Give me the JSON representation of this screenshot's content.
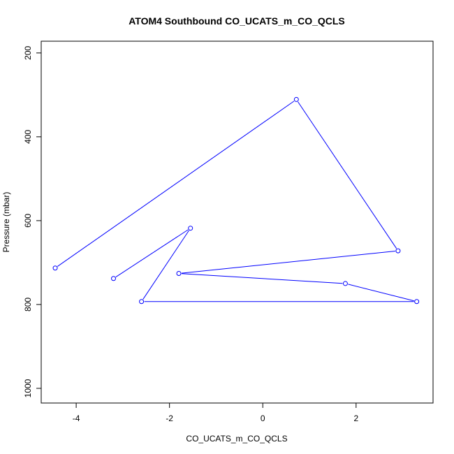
{
  "chart_data": {
    "type": "line",
    "title": "ATOM4 Southbound CO_UCATS_m_CO_QCLS",
    "xlabel": "CO_UCATS_m_CO_QCLS",
    "ylabel": "Pressure (mbar)",
    "xlim": [
      -4.75,
      3.65
    ],
    "ylim": [
      1035,
      172
    ],
    "y_inverted": true,
    "x_ticks": [
      -4,
      -2,
      0,
      2
    ],
    "y_ticks": [
      200,
      400,
      600,
      800,
      1000
    ],
    "series": [
      {
        "color": "#0000ff",
        "marker": "open-circle",
        "points": [
          {
            "x": -4.45,
            "y": 713
          },
          {
            "x": 0.72,
            "y": 311
          },
          {
            "x": 2.9,
            "y": 672
          },
          {
            "x": -1.8,
            "y": 726
          },
          {
            "x": 1.77,
            "y": 750
          },
          {
            "x": 3.3,
            "y": 793
          },
          {
            "x": -2.6,
            "y": 793
          },
          {
            "x": -1.55,
            "y": 618
          },
          {
            "x": -3.2,
            "y": 738
          }
        ]
      }
    ]
  }
}
